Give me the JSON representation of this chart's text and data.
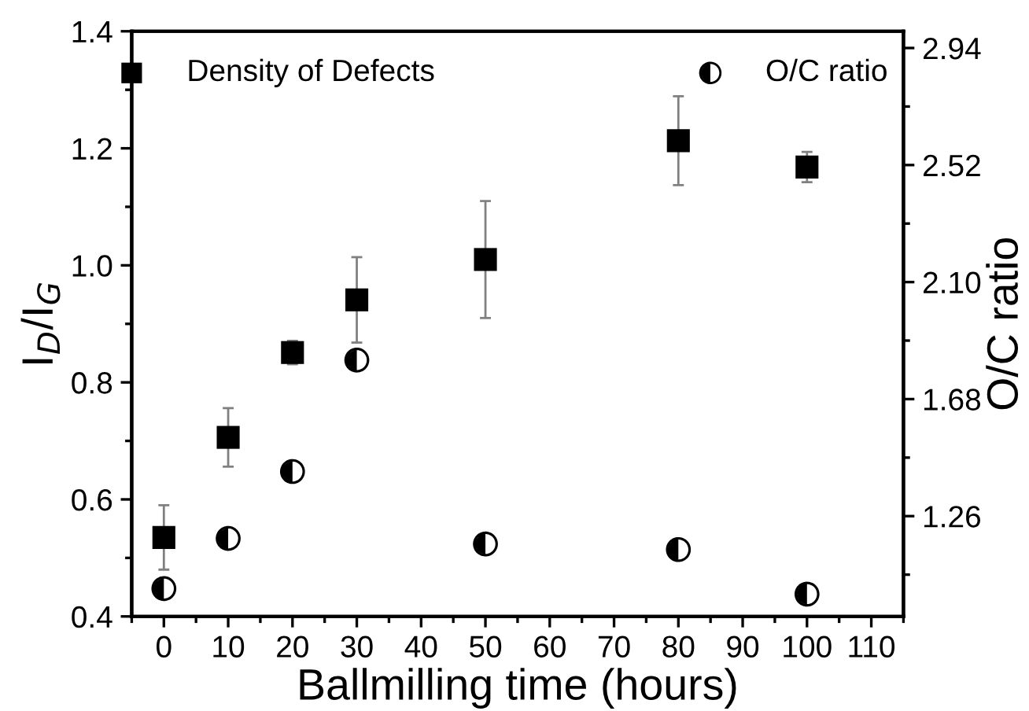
{
  "chart_data": {
    "type": "scatter",
    "xlabel": "Ballmilling time (hours)",
    "ylabel": "I$_{D}$/I$_{G}$",
    "y2label": "O/C ratio",
    "x": [
      0,
      10,
      20,
      30,
      50,
      80,
      100
    ],
    "series": [
      {
        "name": "Density of Defects",
        "color": "#000000",
        "marker": "square",
        "values": [
          0.535,
          0.706,
          0.851,
          0.941,
          1.01,
          1.213,
          1.168
        ],
        "errors": [
          0.055,
          0.05,
          0.02,
          0.073,
          0.1,
          0.076,
          0.026
        ]
      },
      {
        "name": "O/C ratio",
        "color": "#000000",
        "marker": "circle",
        "axis": "y2",
        "values": [
          1.0,
          1.18,
          1.42,
          1.82,
          1.16,
          1.14,
          0.98
        ]
      }
    ],
    "xlim": [
      -5,
      115
    ],
    "xticks": [
      0,
      10,
      20,
      30,
      40,
      50,
      60,
      70,
      80,
      90,
      100,
      110
    ],
    "ylim": [
      0.4,
      1.4
    ],
    "yticks": [
      {
        "value": 0.4,
        "label": "0.4"
      },
      {
        "value": 0.6,
        "label": "0.6"
      },
      {
        "value": 0.8,
        "label": "0.8"
      },
      {
        "value": 1.0,
        "label": "1.0"
      },
      {
        "value": 1.2,
        "label": "1.2"
      },
      {
        "value": 1.4,
        "label": "1.4"
      }
    ],
    "y2lim": [
      0.9,
      3.0
    ],
    "y2ticks": [
      1.26,
      1.68,
      {
        "value": 2.1,
        "label": "2.10"
      },
      2.52,
      2.94
    ],
    "legend": "top",
    "grid": false
  }
}
